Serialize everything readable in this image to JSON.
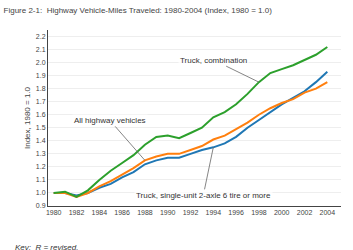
{
  "chart_data": {
    "type": "line",
    "title": "Figure 2-1:  Highway Vehicle-Miles Traveled: 1980-2004 (Index, 1980 = 1.0)",
    "ylabel": "Index, 1980 = 1.0",
    "annotations": [
      "Key:  R = revised."
    ],
    "x": [
      1980,
      1981,
      1982,
      1983,
      1984,
      1985,
      1986,
      1987,
      1988,
      1989,
      1990,
      1991,
      1992,
      1993,
      1994,
      1995,
      1996,
      1997,
      1998,
      1999,
      2000,
      2001,
      2002,
      2003,
      2004
    ],
    "series": [
      {
        "name": "Truck, single-unit 2-axle 6 tire or more",
        "values": [
          1.0,
          1.0,
          0.98,
          1.0,
          1.04,
          1.07,
          1.12,
          1.16,
          1.22,
          1.25,
          1.27,
          1.27,
          1.3,
          1.33,
          1.35,
          1.38,
          1.43,
          1.5,
          1.56,
          1.62,
          1.68,
          1.73,
          1.78,
          1.85,
          1.93
        ]
      },
      {
        "name": "All highway vehicles",
        "values": [
          1.0,
          1.0,
          0.97,
          1.0,
          1.05,
          1.09,
          1.14,
          1.19,
          1.25,
          1.28,
          1.3,
          1.3,
          1.33,
          1.36,
          1.41,
          1.44,
          1.49,
          1.54,
          1.6,
          1.65,
          1.69,
          1.72,
          1.77,
          1.8,
          1.85
        ]
      },
      {
        "name": "Truck, combination",
        "values": [
          1.0,
          1.01,
          0.97,
          1.02,
          1.1,
          1.17,
          1.23,
          1.29,
          1.37,
          1.43,
          1.44,
          1.42,
          1.46,
          1.5,
          1.58,
          1.62,
          1.68,
          1.76,
          1.85,
          1.92,
          1.95,
          1.98,
          2.02,
          2.06,
          2.12
        ]
      }
    ],
    "xlim": [
      1979.5,
      2005.2
    ],
    "xticks": [
      1980,
      1982,
      1984,
      1986,
      1988,
      1990,
      1992,
      1994,
      1996,
      1998,
      2000,
      2002,
      2004
    ],
    "ylim": [
      0.9,
      2.25
    ],
    "yticks": [
      0.9,
      {
        "value": 1.0,
        "label": "1.0"
      },
      1.1,
      1.2,
      1.3,
      1.4,
      1.5,
      1.6,
      1.7,
      1.8,
      1.9,
      {
        "value": 2.0,
        "label": "2.0"
      },
      2.1,
      2.2
    ],
    "grid": "y"
  }
}
